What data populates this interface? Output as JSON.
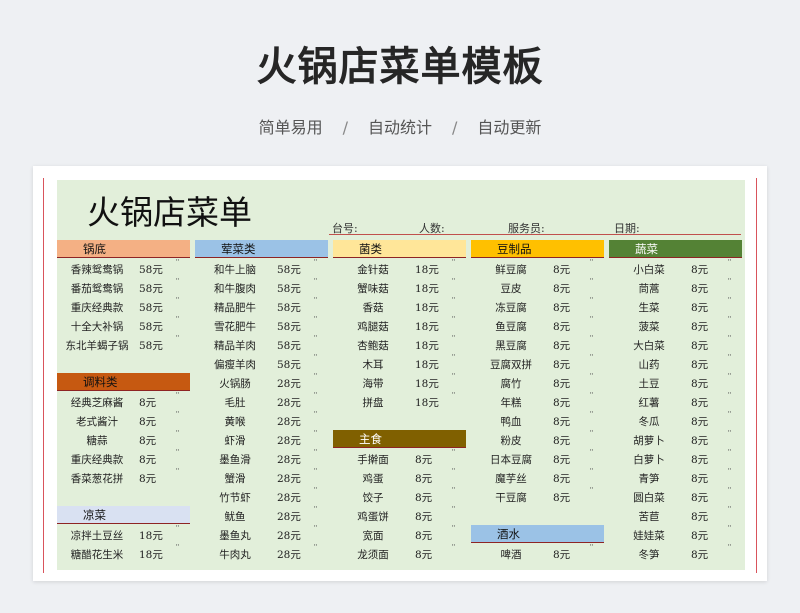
{
  "header": {
    "title": "火锅店菜单模板",
    "tags": [
      "简单易用",
      "自动统计",
      "自动更新"
    ],
    "separator": "/"
  },
  "sheet": {
    "title": "火锅店菜单",
    "fields": [
      "台号:",
      "人数:",
      "服务员:",
      "日期:"
    ],
    "mark": "¨"
  },
  "colors": {
    "sheet_bg": "#e2efda",
    "guodi": "#f4b084",
    "tiaoliao": "#c65911",
    "liangcai": "#d9e1f2",
    "huncai": "#9bc2e6",
    "junlei": "#ffe699",
    "zhushi": "#806000",
    "doufu": "#ffc000",
    "jiushui": "#9bc2e6",
    "shucai": "#548235"
  },
  "categories": [
    {
      "name": "锅底",
      "items": [
        {
          "name": "香辣鸳鸯锅",
          "price": "58元"
        },
        {
          "name": "番茄鸳鸯锅",
          "price": "58元"
        },
        {
          "name": "重庆经典款",
          "price": "58元"
        },
        {
          "name": "十全大补锅",
          "price": "58元"
        },
        {
          "name": "东北羊蝎子锅",
          "price": "58元"
        }
      ]
    },
    {
      "name": "调料类",
      "items": [
        {
          "name": "经典芝麻酱",
          "price": "8元"
        },
        {
          "name": "老式酱汁",
          "price": "8元"
        },
        {
          "name": "糖蒜",
          "price": "8元"
        },
        {
          "name": "重庆经典款",
          "price": "8元"
        },
        {
          "name": "香菜葱花拼",
          "price": "8元"
        }
      ]
    },
    {
      "name": "凉菜",
      "items": [
        {
          "name": "凉拌土豆丝",
          "price": "18元"
        },
        {
          "name": "糖醋花生米",
          "price": "18元"
        }
      ]
    },
    {
      "name": "荤菜类",
      "items": [
        {
          "name": "和牛上脑",
          "price": "58元"
        },
        {
          "name": "和牛腹肉",
          "price": "58元"
        },
        {
          "name": "精品肥牛",
          "price": "58元"
        },
        {
          "name": "雪花肥牛",
          "price": "58元"
        },
        {
          "name": "精品羊肉",
          "price": "58元"
        },
        {
          "name": "偏瘦羊肉",
          "price": "58元"
        },
        {
          "name": "火锅肠",
          "price": "28元"
        },
        {
          "name": "毛肚",
          "price": "28元"
        },
        {
          "name": "黄喉",
          "price": "28元"
        },
        {
          "name": "虾滑",
          "price": "28元"
        },
        {
          "name": "墨鱼滑",
          "price": "28元"
        },
        {
          "name": "蟹滑",
          "price": "28元"
        },
        {
          "name": "竹节虾",
          "price": "28元"
        },
        {
          "name": "鱿鱼",
          "price": "28元"
        },
        {
          "name": "墨鱼丸",
          "price": "28元"
        },
        {
          "name": "牛肉丸",
          "price": "28元"
        }
      ]
    },
    {
      "name": "菌类",
      "items": [
        {
          "name": "金针菇",
          "price": "18元"
        },
        {
          "name": "蟹味菇",
          "price": "18元"
        },
        {
          "name": "香菇",
          "price": "18元"
        },
        {
          "name": "鸡腿菇",
          "price": "18元"
        },
        {
          "name": "杏鲍菇",
          "price": "18元"
        },
        {
          "name": "木耳",
          "price": "18元"
        },
        {
          "name": "海带",
          "price": "18元"
        },
        {
          "name": "拼盘",
          "price": "18元"
        }
      ]
    },
    {
      "name": "主食",
      "items": [
        {
          "name": "手擀面",
          "price": "8元"
        },
        {
          "name": "鸡蛋",
          "price": "8元"
        },
        {
          "name": "饺子",
          "price": "8元"
        },
        {
          "name": "鸡蛋饼",
          "price": "8元"
        },
        {
          "name": "宽面",
          "price": "8元"
        },
        {
          "name": "龙须面",
          "price": "8元"
        }
      ]
    },
    {
      "name": "豆制品",
      "items": [
        {
          "name": "鲜豆腐",
          "price": "8元"
        },
        {
          "name": "豆皮",
          "price": "8元"
        },
        {
          "name": "冻豆腐",
          "price": "8元"
        },
        {
          "name": "鱼豆腐",
          "price": "8元"
        },
        {
          "name": "黑豆腐",
          "price": "8元"
        },
        {
          "name": "豆腐双拼",
          "price": "8元"
        },
        {
          "name": "腐竹",
          "price": "8元"
        },
        {
          "name": "年糕",
          "price": "8元"
        },
        {
          "name": "鸭血",
          "price": "8元"
        },
        {
          "name": "粉皮",
          "price": "8元"
        },
        {
          "name": "日本豆腐",
          "price": "8元"
        },
        {
          "name": "魔芋丝",
          "price": "8元"
        },
        {
          "name": "干豆腐",
          "price": "8元"
        }
      ]
    },
    {
      "name": "酒水",
      "items": [
        {
          "name": "啤酒",
          "price": "8元"
        }
      ]
    },
    {
      "name": "蔬菜",
      "items": [
        {
          "name": "小白菜",
          "price": "8元"
        },
        {
          "name": "茼蒿",
          "price": "8元"
        },
        {
          "name": "生菜",
          "price": "8元"
        },
        {
          "name": "菠菜",
          "price": "8元"
        },
        {
          "name": "大白菜",
          "price": "8元"
        },
        {
          "name": "山药",
          "price": "8元"
        },
        {
          "name": "土豆",
          "price": "8元"
        },
        {
          "name": "红薯",
          "price": "8元"
        },
        {
          "name": "冬瓜",
          "price": "8元"
        },
        {
          "name": "胡萝卜",
          "price": "8元"
        },
        {
          "name": "白萝卜",
          "price": "8元"
        },
        {
          "name": "青笋",
          "price": "8元"
        },
        {
          "name": "圆白菜",
          "price": "8元"
        },
        {
          "name": "苦苣",
          "price": "8元"
        },
        {
          "name": "娃娃菜",
          "price": "8元"
        },
        {
          "name": "冬笋",
          "price": "8元"
        }
      ]
    }
  ]
}
